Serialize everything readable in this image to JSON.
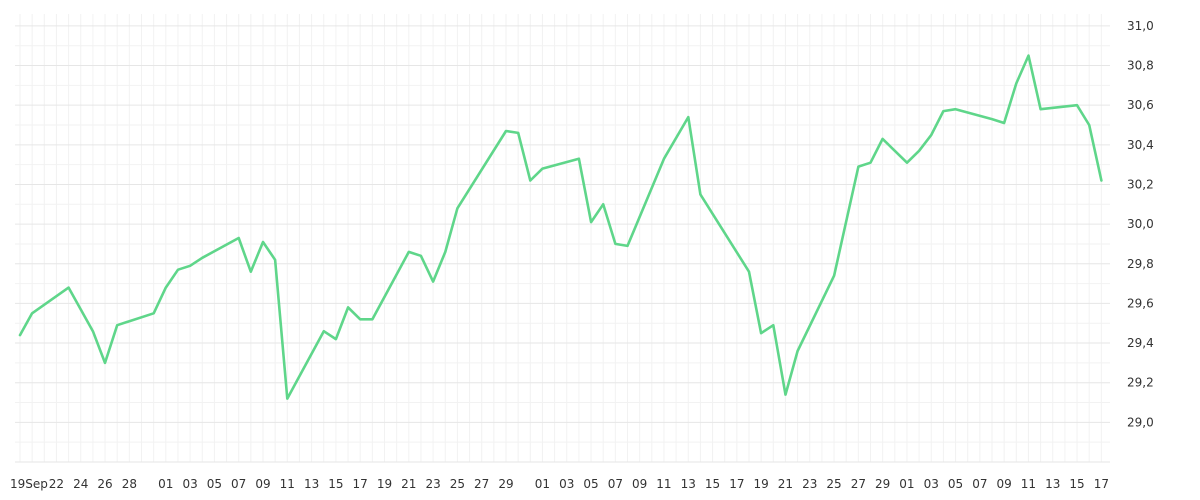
{
  "chart_data": {
    "type": "line",
    "title": "",
    "xlabel": "",
    "ylabel": "",
    "ylim": [
      28.8,
      31.06
    ],
    "y_ticks": [
      "29,0",
      "29,2",
      "29,4",
      "29,6",
      "29,8",
      "30,0",
      "30,2",
      "30,4",
      "30,6",
      "30,8",
      "31,0"
    ],
    "x_ticks": [
      "19Sep",
      "22",
      "24",
      "26",
      "28",
      "01",
      "03",
      "05",
      "07",
      "09",
      "11",
      "13",
      "15",
      "17",
      "19",
      "21",
      "23",
      "25",
      "27",
      "29",
      "01",
      "03",
      "05",
      "07",
      "09",
      "11",
      "13",
      "15",
      "17",
      "19",
      "21",
      "23",
      "25",
      "27",
      "29",
      "01",
      "03",
      "05",
      "07",
      "09",
      "11",
      "13",
      "15",
      "17"
    ],
    "grid": true,
    "line_color": "#5fd68a",
    "series": [
      {
        "x": [
          "2022-09-19",
          "2022-09-20",
          "2022-09-23",
          "2022-09-25",
          "2022-09-26",
          "2022-09-27",
          "2022-09-30",
          "2022-10-01",
          "2022-10-02",
          "2022-10-03",
          "2022-10-04",
          "2022-10-07",
          "2022-10-08",
          "2022-10-09",
          "2022-10-10",
          "2022-10-11",
          "2022-10-14",
          "2022-10-15",
          "2022-10-16",
          "2022-10-17",
          "2022-10-18",
          "2022-10-21",
          "2022-10-22",
          "2022-10-23",
          "2022-10-24",
          "2022-10-25",
          "2022-10-29",
          "2022-10-30",
          "2022-10-31",
          "2022-11-01",
          "2022-11-04",
          "2022-11-05",
          "2022-11-06",
          "2022-11-07",
          "2022-11-08",
          "2022-11-11",
          "2022-11-13",
          "2022-11-14",
          "2022-11-18",
          "2022-11-19",
          "2022-11-20",
          "2022-11-21",
          "2022-11-22",
          "2022-11-25",
          "2022-11-27",
          "2022-11-28",
          "2022-11-29",
          "2022-12-01",
          "2022-12-02",
          "2022-12-03",
          "2022-12-04",
          "2022-12-05",
          "2022-12-08",
          "2022-12-09",
          "2022-12-10",
          "2022-12-11",
          "2022-12-12",
          "2022-12-15",
          "2022-12-16",
          "2022-12-17"
        ],
        "values": [
          29.44,
          29.55,
          29.68,
          29.46,
          29.3,
          29.49,
          29.55,
          29.68,
          29.77,
          29.79,
          29.83,
          29.93,
          29.76,
          29.91,
          29.82,
          29.12,
          29.46,
          29.42,
          29.58,
          29.52,
          29.52,
          29.86,
          29.84,
          29.71,
          29.86,
          30.08,
          30.47,
          30.46,
          30.22,
          30.28,
          30.33,
          30.01,
          30.1,
          29.9,
          29.89,
          30.33,
          30.54,
          30.15,
          29.76,
          29.45,
          29.49,
          29.14,
          29.36,
          29.74,
          30.29,
          30.31,
          30.43,
          30.31,
          30.37,
          30.45,
          30.57,
          30.58,
          30.53,
          30.51,
          30.71,
          30.85,
          30.58,
          30.6,
          30.5,
          30.22
        ]
      }
    ]
  }
}
